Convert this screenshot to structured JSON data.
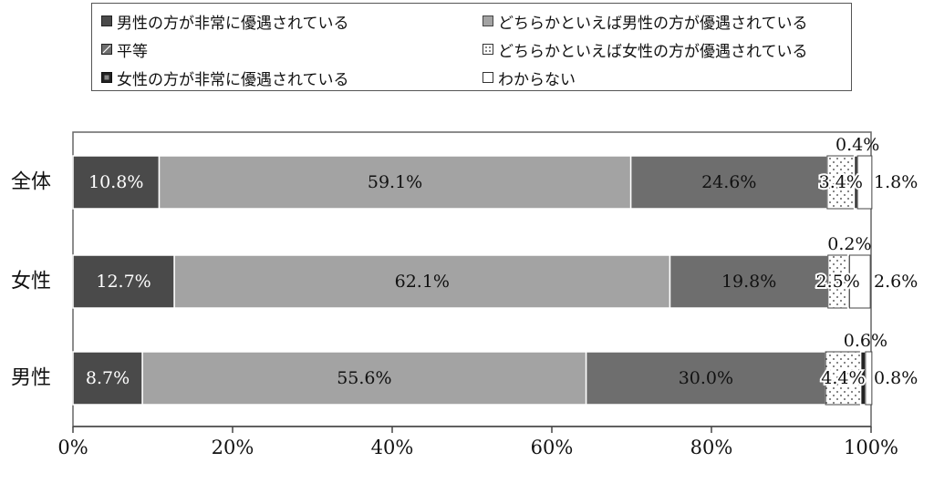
{
  "chart_data": {
    "type": "bar",
    "orientation": "horizontal",
    "stacked": true,
    "categories": [
      "全体",
      "女性",
      "男性"
    ],
    "series": [
      {
        "name": "男性の方が非常に優遇されている",
        "values": [
          10.8,
          12.7,
          8.7
        ],
        "color": "#4a4a4a",
        "pattern": "solid-dark"
      },
      {
        "name": "どちらかといえば男性の方が優遇されている",
        "values": [
          59.1,
          62.1,
          55.6
        ],
        "color": "#a3a3a3",
        "pattern": "solid-light"
      },
      {
        "name": "平等",
        "values": [
          24.6,
          19.8,
          30.0
        ],
        "color": "#6e6e6e",
        "pattern": "solid-mid"
      },
      {
        "name": "どちらかといえば女性の方が優遇されている",
        "values": [
          3.4,
          2.5,
          4.4
        ],
        "color": "#ffffff",
        "pattern": "dots"
      },
      {
        "name": "女性の方が非常に優遇されている",
        "values": [
          0.4,
          0.2,
          0.6
        ],
        "color": "#222222",
        "pattern": "dark-narrow"
      },
      {
        "name": "わからない",
        "values": [
          1.8,
          2.6,
          0.8
        ],
        "color": "#ffffff",
        "pattern": "white"
      }
    ],
    "data_labels": [
      [
        "10.8%",
        "59.1%",
        "24.6%",
        "3.4%",
        "0.4%",
        "1.8%"
      ],
      [
        "12.7%",
        "62.1%",
        "19.8%",
        "2.5%",
        "0.2%",
        "2.6%"
      ],
      [
        "8.7%",
        "55.6%",
        "30.0%",
        "4.4%",
        "0.6%",
        "0.8%"
      ]
    ],
    "xlim": [
      0,
      100
    ],
    "xticks": [
      "0%",
      "20%",
      "40%",
      "60%",
      "80%",
      "100%"
    ],
    "legend_position": "top"
  }
}
